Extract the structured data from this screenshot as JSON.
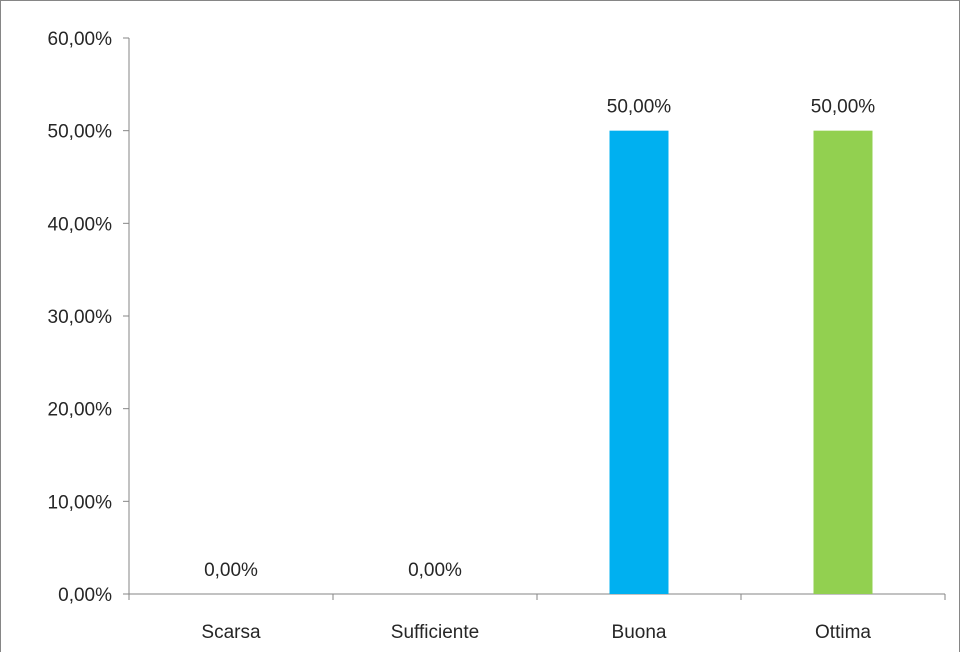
{
  "chart_data": {
    "type": "bar",
    "categories": [
      "Scarsa",
      "Sufficiente",
      "Buona",
      "Ottima"
    ],
    "values": [
      0,
      0,
      50,
      50
    ],
    "data_labels": [
      "0,00%",
      "0,00%",
      "50,00%",
      "50,00%"
    ],
    "bar_colors": [
      "#4f81bd",
      "#4f81bd",
      "#00b0f0",
      "#92d050"
    ],
    "ylim": [
      0,
      60
    ],
    "yticks": [
      0,
      10,
      20,
      30,
      40,
      50,
      60
    ],
    "ytick_labels": [
      "0,00%",
      "10,00%",
      "20,00%",
      "30,00%",
      "40,00%",
      "50,00%",
      "60,00%"
    ],
    "grid": false,
    "legend": "none",
    "xlabel": "",
    "ylabel": ""
  },
  "colors": {
    "axis": "#868686",
    "text": "#262626",
    "frame": "#868686"
  }
}
